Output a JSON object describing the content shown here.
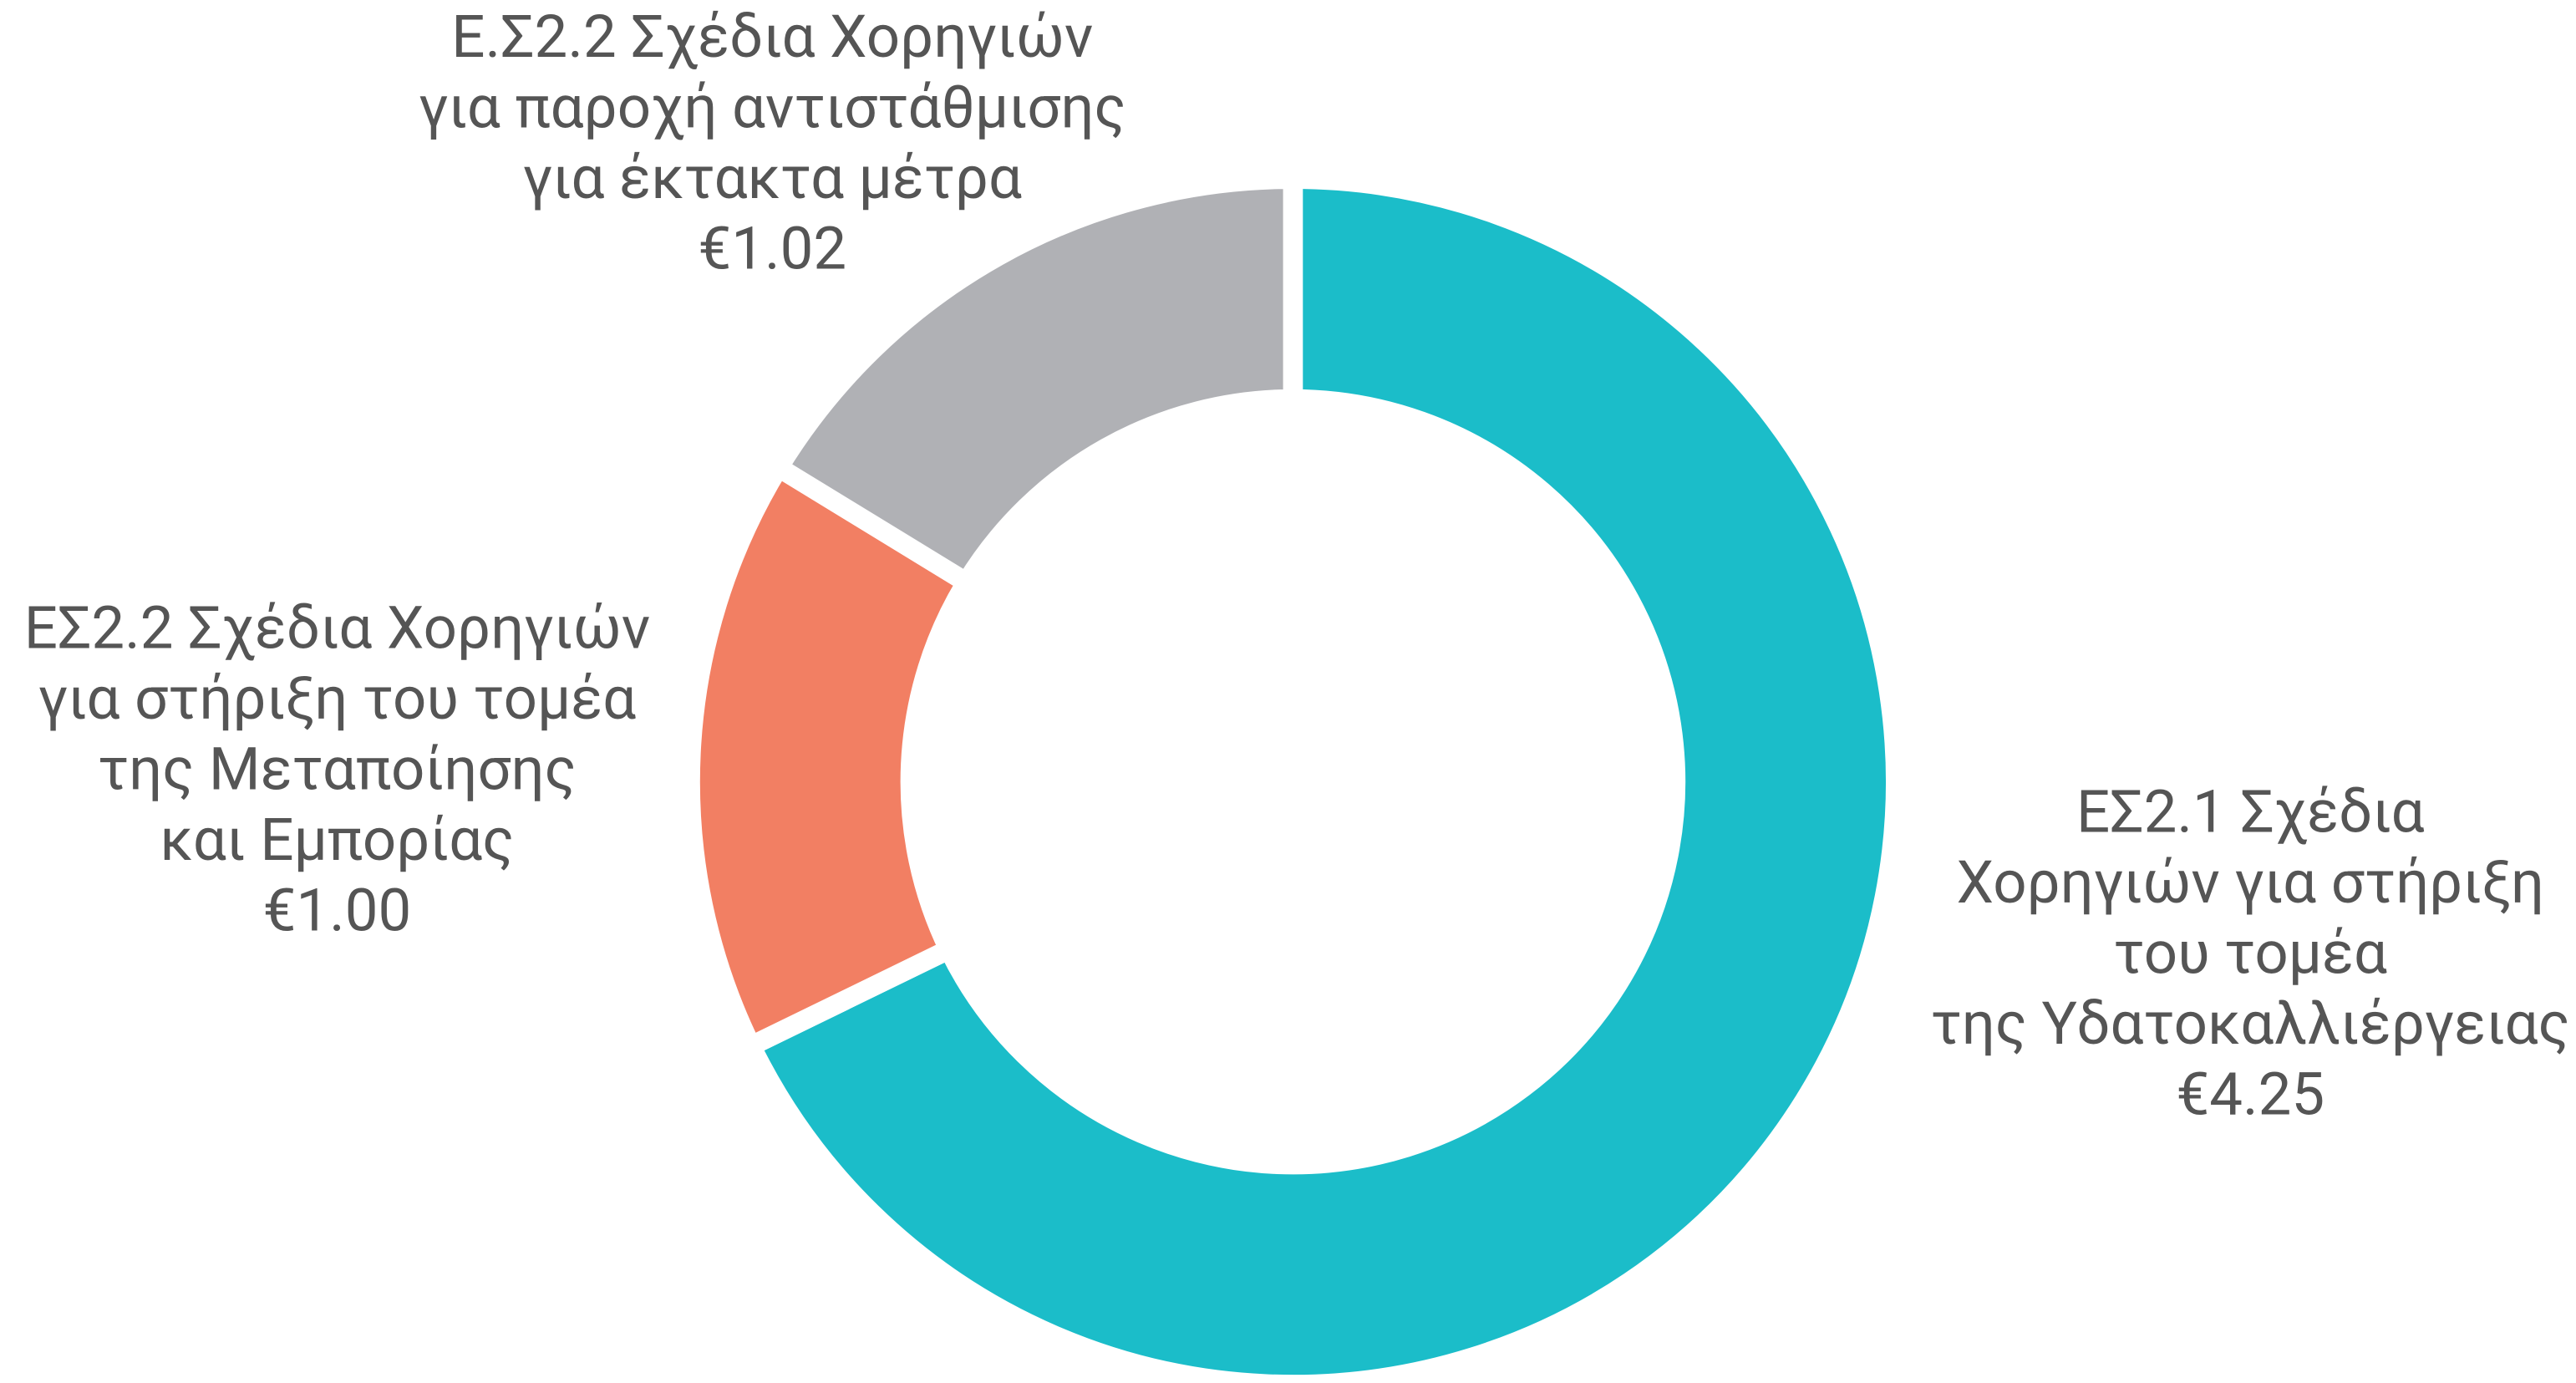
{
  "chart_data": {
    "type": "donut",
    "categories": [
      [
        "ΕΣ2.1 Σχέδια",
        "Χορηγιών για στήριξη",
        "του τομέα",
        "της Υδατοκαλλιέργειας"
      ],
      [
        "ΕΣ2.2 Σχέδια Χορηγιών",
        "για στήριξη του τομέα",
        "της Μεταποίησης",
        "και Εμπορίας"
      ],
      [
        "Ε.Σ2.2 Σχέδια Χορηγιών",
        "για παροχή αντιστάθμισης",
        "για έκτακτα μέτρα"
      ]
    ],
    "values": [
      4.25,
      1.0,
      1.02
    ],
    "value_labels": [
      "€4.25",
      "€1.00",
      "€1.02"
    ],
    "colors": [
      "#1bbdc9",
      "#f27f63",
      "#b0b1b5"
    ]
  }
}
